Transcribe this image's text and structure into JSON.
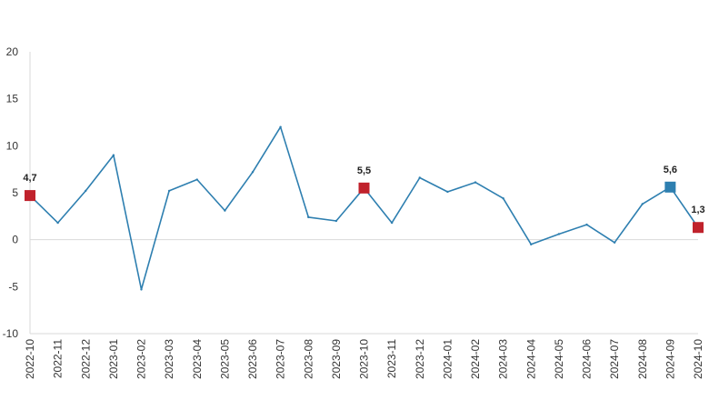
{
  "chart_data": {
    "type": "line",
    "title": "",
    "xlabel": "",
    "ylabel": "",
    "ylim": [
      -10,
      20
    ],
    "yticks": [
      {
        "value": 20,
        "label": "20"
      },
      {
        "value": 15,
        "label": "15"
      },
      {
        "value": 10,
        "label": "10"
      },
      {
        "value": 5,
        "label": "5"
      },
      {
        "value": 0,
        "label": "0"
      },
      {
        "value": -5,
        "label": "-5"
      },
      {
        "value": -10,
        "label": "-10"
      }
    ],
    "grid": "zero-line only",
    "legend": "none",
    "categories": [
      "2022-10",
      "2022-11",
      "2022-12",
      "2023-01",
      "2023-02",
      "2023-03",
      "2023-04",
      "2023-05",
      "2023-06",
      "2023-07",
      "2023-08",
      "2023-09",
      "2023-10",
      "2023-11",
      "2023-12",
      "2024-01",
      "2024-02",
      "2024-03",
      "2024-04",
      "2024-05",
      "2024-06",
      "2024-07",
      "2024-08",
      "2024-09",
      "2024-10"
    ],
    "series": [
      {
        "values": [
          4.7,
          1.8,
          5.2,
          9.0,
          -5.3,
          5.2,
          6.4,
          3.1,
          7.2,
          12.0,
          2.4,
          2.0,
          5.5,
          1.8,
          6.6,
          5.1,
          6.1,
          4.4,
          -0.5,
          0.6,
          1.6,
          -0.3,
          3.8,
          5.6,
          1.3
        ],
        "color": "#2e7fb0"
      }
    ],
    "highlights": [
      {
        "index": 0,
        "label": "4,7",
        "color": "#c0222c"
      },
      {
        "index": 12,
        "label": "5,5",
        "color": "#c0222c"
      },
      {
        "index": 23,
        "label": "5,6",
        "color": "#2e7fb0"
      },
      {
        "index": 24,
        "label": "1,3",
        "color": "#c0222c"
      }
    ],
    "axis_color": "#d9d9d9",
    "zero_line_color": "#d9d9d9"
  }
}
